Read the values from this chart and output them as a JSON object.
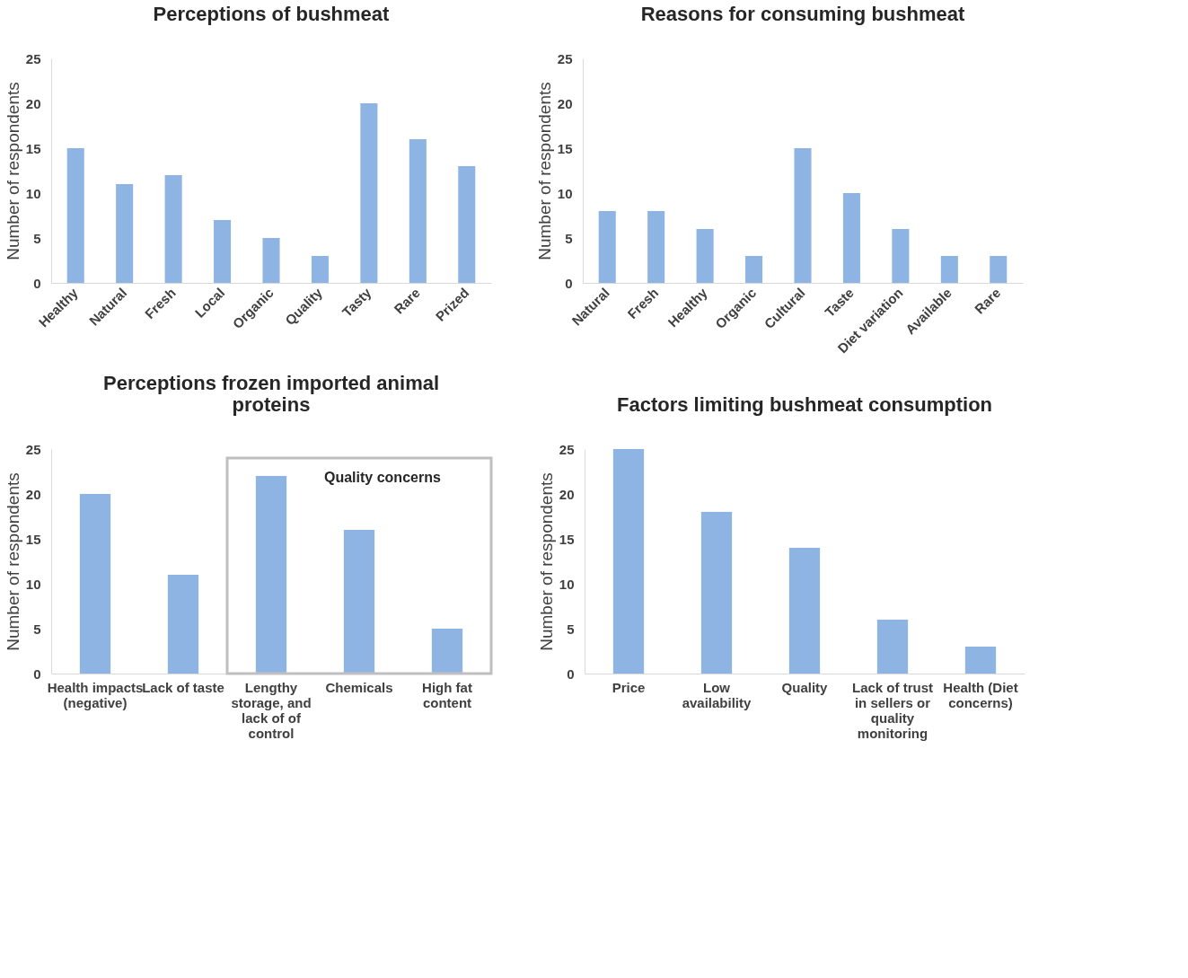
{
  "chart_data": [
    {
      "type": "bar",
      "title": "Perceptions of bushmeat",
      "ylabel": "Number of respondents",
      "categories": [
        "Healthy",
        "Natural",
        "Fresh",
        "Local",
        "Organic",
        "Quality",
        "Tasty",
        "Rare",
        "Prized"
      ],
      "values": [
        15,
        11,
        12,
        7,
        5,
        3,
        20,
        16,
        13
      ],
      "color": "#8eb4e3",
      "ylim": [
        0,
        25
      ],
      "yticks": [
        0,
        5,
        10,
        15,
        20,
        25
      ],
      "grid": false
    },
    {
      "type": "bar",
      "title": "Reasons for consuming bushmeat",
      "ylabel": "Number of respondents",
      "categories": [
        "Natural",
        "Fresh",
        "Healthy",
        "Organic",
        "Cultural",
        "Taste",
        "Diet variation",
        "Available",
        "Rare"
      ],
      "values": [
        8,
        8,
        6,
        3,
        15,
        10,
        6,
        3,
        3
      ],
      "color": "#8eb4e3",
      "ylim": [
        0,
        25
      ],
      "yticks": [
        0,
        5,
        10,
        15,
        20,
        25
      ],
      "grid": false
    },
    {
      "type": "bar",
      "title": "Perceptions frozen imported animal proteins",
      "ylabel": "Number of respondents",
      "categories": [
        "Health impacts (negative)",
        "Lack of taste",
        "Lengthy storage, and lack of of control",
        "Chemicals",
        "High fat content"
      ],
      "values": [
        20,
        11,
        22,
        16,
        5
      ],
      "color": "#8eb4e3",
      "ylim": [
        0,
        25
      ],
      "yticks": [
        0,
        5,
        10,
        15,
        20,
        25
      ],
      "grid": false,
      "annotations": [
        "Quality concerns"
      ]
    },
    {
      "type": "bar",
      "title": "Factors limiting bushmeat consumption",
      "ylabel": "Number of respondents",
      "categories": [
        "Price",
        "Low availability",
        "Quality",
        "Lack of trust in sellers or quality monitoring",
        "Health (Diet concerns)"
      ],
      "values": [
        25,
        18,
        14,
        6,
        3
      ],
      "color": "#8eb4e3",
      "ylim": [
        0,
        25
      ],
      "yticks": [
        0,
        5,
        10,
        15,
        20,
        25
      ],
      "grid": false
    }
  ]
}
